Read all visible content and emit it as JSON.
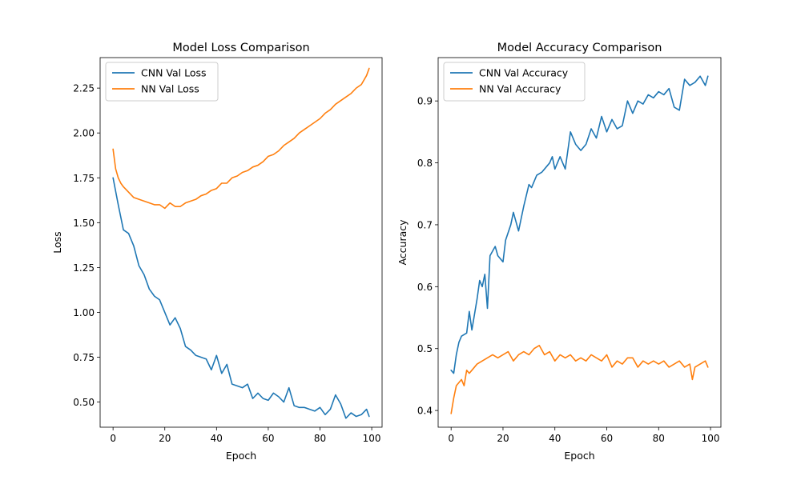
{
  "chart_data": [
    {
      "type": "line",
      "title": "Model Loss Comparison",
      "xlabel": "Epoch",
      "ylabel": "Loss",
      "xlim": [
        -5,
        104
      ],
      "ylim": [
        0.36,
        2.42
      ],
      "xticks": [
        0,
        20,
        40,
        60,
        80,
        100
      ],
      "xtick_labels": [
        "0",
        "20",
        "40",
        "60",
        "80",
        "100"
      ],
      "yticks": [
        0.5,
        0.75,
        1.0,
        1.25,
        1.5,
        1.75,
        2.0,
        2.25
      ],
      "ytick_labels": [
        "0.50",
        "0.75",
        "1.00",
        "1.25",
        "1.50",
        "1.75",
        "2.00",
        "2.25"
      ],
      "grid": false,
      "legend": "upper-left",
      "series": [
        {
          "name": "CNN Val Loss",
          "color": "#1f77b4",
          "x": [
            0,
            2,
            4,
            6,
            8,
            10,
            12,
            14,
            16,
            18,
            20,
            22,
            24,
            26,
            28,
            30,
            32,
            34,
            36,
            38,
            40,
            42,
            44,
            46,
            48,
            50,
            52,
            54,
            56,
            58,
            60,
            62,
            64,
            66,
            68,
            70,
            72,
            74,
            76,
            78,
            80,
            82,
            84,
            86,
            88,
            90,
            92,
            94,
            96,
            98,
            99
          ],
          "y": [
            1.75,
            1.6,
            1.46,
            1.44,
            1.37,
            1.26,
            1.21,
            1.13,
            1.09,
            1.07,
            1.0,
            0.93,
            0.97,
            0.91,
            0.81,
            0.79,
            0.76,
            0.75,
            0.74,
            0.68,
            0.76,
            0.66,
            0.71,
            0.6,
            0.59,
            0.58,
            0.6,
            0.52,
            0.55,
            0.52,
            0.51,
            0.55,
            0.53,
            0.5,
            0.58,
            0.48,
            0.47,
            0.47,
            0.46,
            0.45,
            0.47,
            0.43,
            0.46,
            0.54,
            0.49,
            0.41,
            0.44,
            0.42,
            0.43,
            0.46,
            0.42
          ]
        },
        {
          "name": "NN Val Loss",
          "color": "#ff7f0e",
          "x": [
            0,
            1,
            2,
            3,
            4,
            6,
            8,
            10,
            12,
            14,
            16,
            18,
            20,
            22,
            24,
            26,
            28,
            30,
            32,
            34,
            36,
            38,
            40,
            42,
            44,
            46,
            48,
            50,
            52,
            54,
            56,
            58,
            60,
            62,
            64,
            66,
            68,
            70,
            72,
            74,
            76,
            78,
            80,
            82,
            84,
            86,
            88,
            90,
            92,
            94,
            96,
            98,
            99
          ],
          "y": [
            1.91,
            1.8,
            1.75,
            1.72,
            1.7,
            1.67,
            1.64,
            1.63,
            1.62,
            1.61,
            1.6,
            1.6,
            1.58,
            1.61,
            1.59,
            1.59,
            1.61,
            1.62,
            1.63,
            1.65,
            1.66,
            1.68,
            1.69,
            1.72,
            1.72,
            1.75,
            1.76,
            1.78,
            1.79,
            1.81,
            1.82,
            1.84,
            1.87,
            1.88,
            1.9,
            1.93,
            1.95,
            1.97,
            2.0,
            2.02,
            2.04,
            2.06,
            2.08,
            2.11,
            2.13,
            2.16,
            2.18,
            2.2,
            2.22,
            2.25,
            2.27,
            2.32,
            2.36
          ]
        }
      ]
    },
    {
      "type": "line",
      "title": "Model Accuracy Comparison",
      "xlabel": "Epoch",
      "ylabel": "Accuracy",
      "xlim": [
        -5,
        104
      ],
      "ylim": [
        0.373,
        0.97
      ],
      "xticks": [
        0,
        20,
        40,
        60,
        80,
        100
      ],
      "xtick_labels": [
        "0",
        "20",
        "40",
        "60",
        "80",
        "100"
      ],
      "yticks": [
        0.4,
        0.5,
        0.6,
        0.7,
        0.8,
        0.9
      ],
      "ytick_labels": [
        "0.4",
        "0.5",
        "0.6",
        "0.7",
        "0.8",
        "0.9"
      ],
      "grid": false,
      "legend": "upper-left",
      "series": [
        {
          "name": "CNN Val Accuracy",
          "color": "#1f77b4",
          "x": [
            0,
            1,
            2,
            3,
            4,
            6,
            7,
            8,
            10,
            11,
            12,
            13,
            14,
            15,
            17,
            18,
            20,
            21,
            23,
            24,
            26,
            28,
            30,
            31,
            33,
            35,
            36,
            38,
            39,
            40,
            42,
            44,
            46,
            48,
            50,
            52,
            54,
            56,
            58,
            60,
            62,
            64,
            66,
            68,
            70,
            72,
            74,
            76,
            78,
            80,
            82,
            84,
            86,
            88,
            90,
            92,
            94,
            96,
            98,
            99
          ],
          "y": [
            0.465,
            0.46,
            0.49,
            0.51,
            0.52,
            0.525,
            0.56,
            0.53,
            0.58,
            0.61,
            0.6,
            0.62,
            0.565,
            0.65,
            0.665,
            0.65,
            0.64,
            0.675,
            0.7,
            0.72,
            0.69,
            0.73,
            0.765,
            0.76,
            0.78,
            0.785,
            0.79,
            0.8,
            0.81,
            0.79,
            0.81,
            0.79,
            0.85,
            0.83,
            0.82,
            0.83,
            0.855,
            0.84,
            0.875,
            0.85,
            0.87,
            0.855,
            0.86,
            0.9,
            0.88,
            0.9,
            0.895,
            0.91,
            0.905,
            0.915,
            0.91,
            0.92,
            0.89,
            0.885,
            0.935,
            0.925,
            0.93,
            0.94,
            0.925,
            0.94
          ]
        },
        {
          "name": "NN Val Accuracy",
          "color": "#ff7f0e",
          "x": [
            0,
            1,
            2,
            3,
            4,
            5,
            6,
            7,
            8,
            10,
            12,
            14,
            16,
            18,
            20,
            22,
            24,
            26,
            28,
            30,
            32,
            34,
            36,
            38,
            40,
            42,
            44,
            46,
            48,
            50,
            52,
            54,
            56,
            58,
            60,
            62,
            64,
            66,
            68,
            70,
            72,
            74,
            76,
            78,
            80,
            82,
            84,
            86,
            88,
            90,
            92,
            93,
            94,
            96,
            98,
            99
          ],
          "y": [
            0.395,
            0.42,
            0.44,
            0.445,
            0.45,
            0.44,
            0.465,
            0.46,
            0.465,
            0.475,
            0.48,
            0.485,
            0.49,
            0.485,
            0.49,
            0.495,
            0.48,
            0.49,
            0.495,
            0.49,
            0.5,
            0.505,
            0.49,
            0.495,
            0.48,
            0.49,
            0.485,
            0.49,
            0.48,
            0.485,
            0.48,
            0.49,
            0.485,
            0.48,
            0.49,
            0.47,
            0.48,
            0.475,
            0.485,
            0.485,
            0.47,
            0.48,
            0.475,
            0.48,
            0.475,
            0.48,
            0.47,
            0.475,
            0.48,
            0.47,
            0.475,
            0.45,
            0.47,
            0.475,
            0.48,
            0.47
          ]
        }
      ]
    }
  ]
}
